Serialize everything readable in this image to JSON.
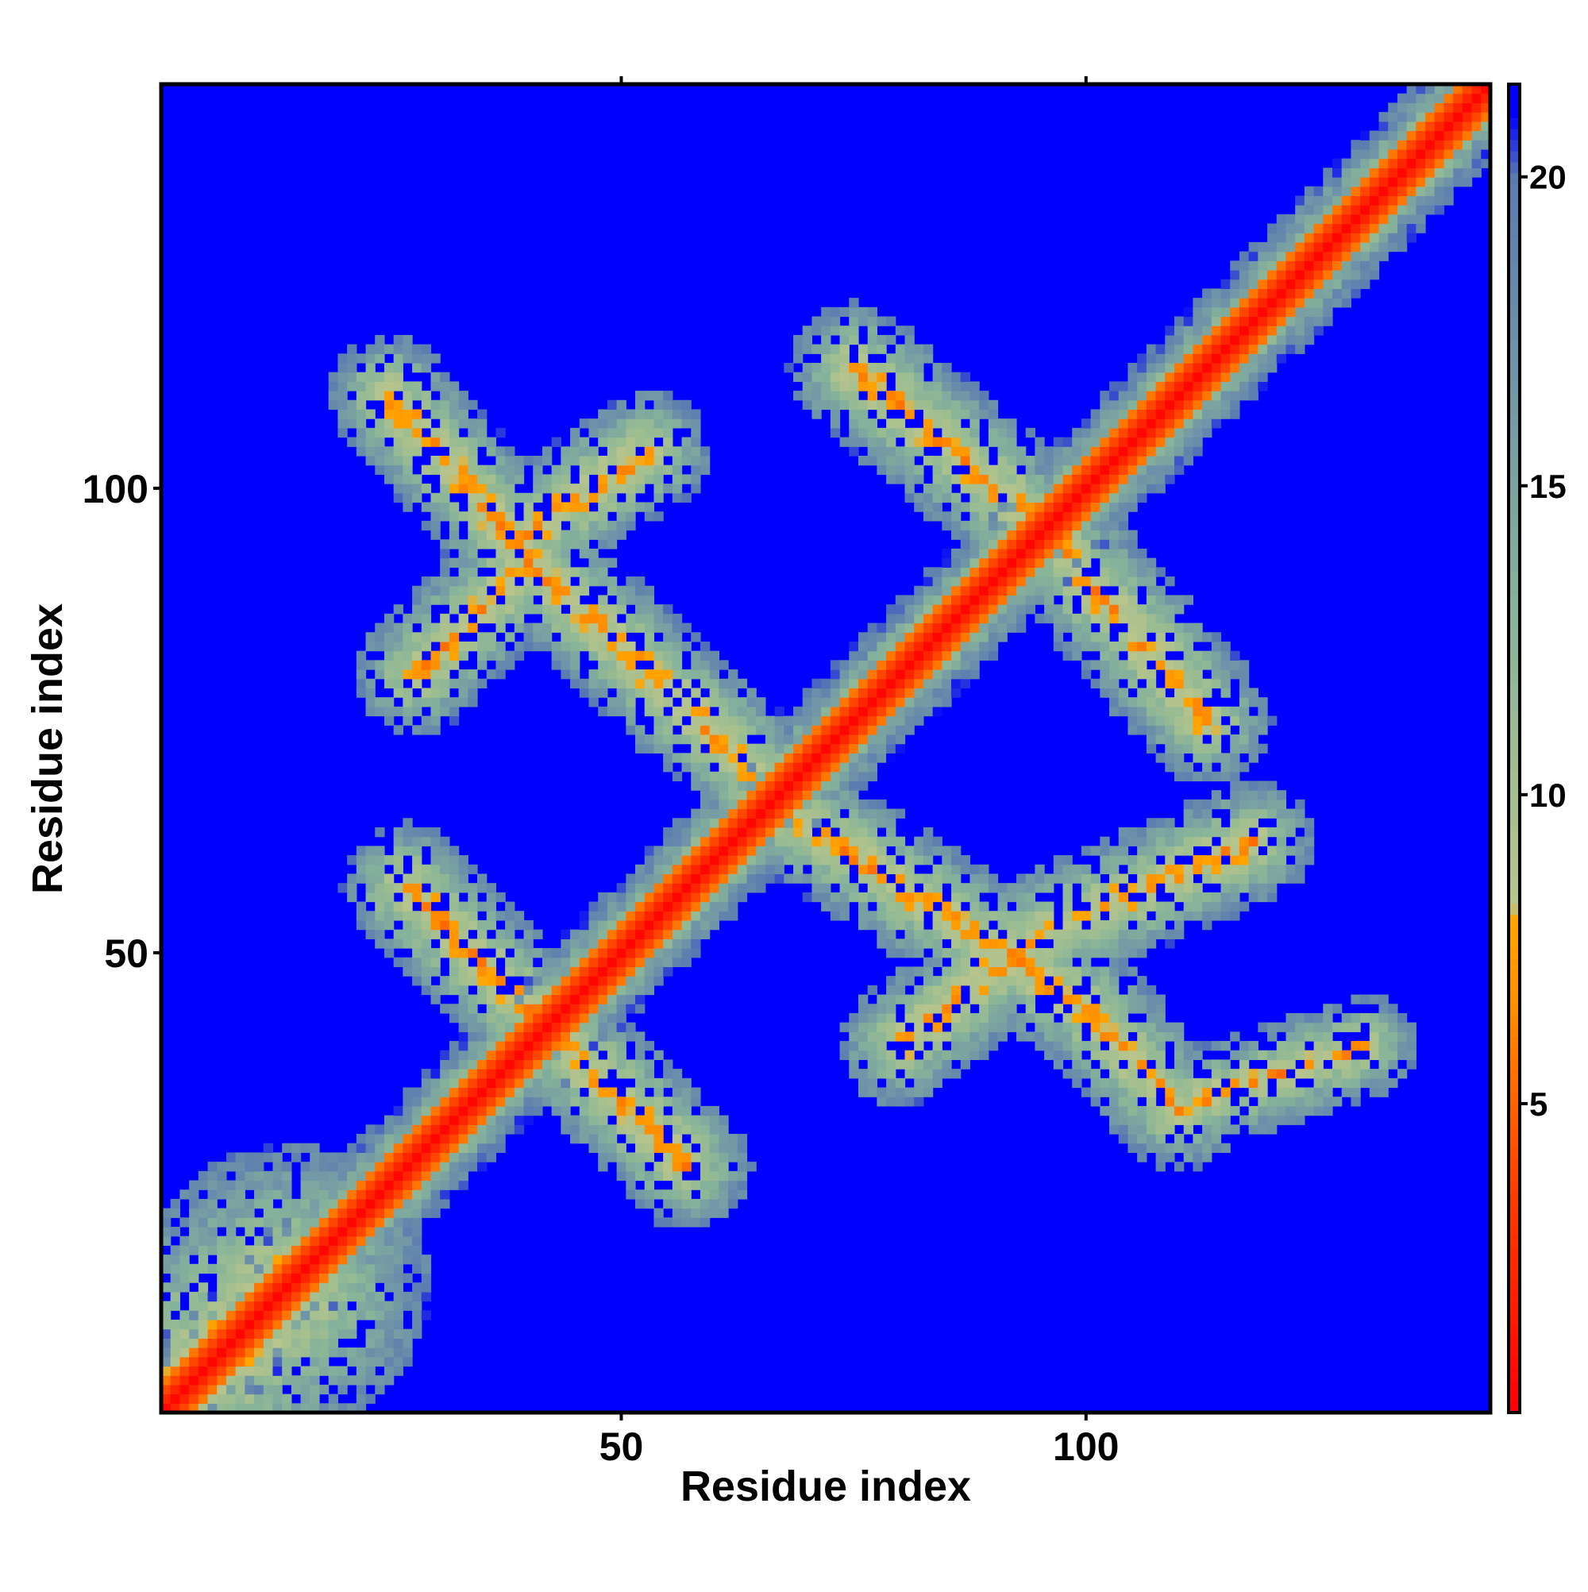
{
  "chart_data": {
    "type": "heatmap",
    "title": "",
    "xlabel": "Residue index",
    "ylabel": "Residue index",
    "xlim": [
      1,
      143
    ],
    "ylim": [
      1,
      143
    ],
    "x_ticks": [
      50,
      100
    ],
    "y_ticks": [
      50,
      100
    ],
    "grid": false,
    "colorbar": {
      "ticks": [
        5,
        10,
        15,
        20
      ],
      "range": [
        0,
        21.5
      ],
      "scale": [
        {
          "value": 0,
          "color": "#ff0000"
        },
        {
          "value": 3.5,
          "color": "#ff3a00"
        },
        {
          "value": 6.5,
          "color": "#ff8c00"
        },
        {
          "value": 8.0,
          "color": "#ffa500"
        },
        {
          "value": 8.2,
          "color": "#b8c48c"
        },
        {
          "value": 10.5,
          "color": "#9fbe90"
        },
        {
          "value": 13,
          "color": "#86b39a"
        },
        {
          "value": 17,
          "color": "#6f93a8"
        },
        {
          "value": 20,
          "color": "#5a7bb0"
        },
        {
          "value": 21,
          "color": "#0000ff"
        },
        {
          "value": 21.5,
          "color": "#0000ff"
        }
      ]
    },
    "background_value": 21,
    "background_color": "#0000ff",
    "features": [
      {
        "kind": "diagonal",
        "range": [
          1,
          143
        ],
        "width": 2.2
      },
      {
        "kind": "arm",
        "from": [
          1,
          1
        ],
        "to": [
          14,
          14
        ],
        "width": 7
      },
      {
        "kind": "arm",
        "from": [
          27,
          57
        ],
        "to": [
          40,
          44
        ],
        "width": 3.2
      },
      {
        "kind": "arm",
        "from": [
          44,
          40
        ],
        "to": [
          57,
          27
        ],
        "width": 3.2
      },
      {
        "kind": "arm",
        "from": [
          25,
          110
        ],
        "to": [
          37,
          96
        ],
        "width": 3.0
      },
      {
        "kind": "arm",
        "from": [
          53,
          104
        ],
        "to": [
          38,
          94
        ],
        "width": 3.0
      },
      {
        "kind": "arm",
        "from": [
          38,
          94
        ],
        "to": [
          66,
          68
        ],
        "width": 3.0
      },
      {
        "kind": "arm",
        "from": [
          28,
          80
        ],
        "to": [
          38,
          90
        ],
        "width": 3.0
      },
      {
        "kind": "arm",
        "from": [
          75,
          113
        ],
        "to": [
          95,
          96
        ],
        "width": 3.2
      },
      {
        "kind": "arm",
        "from": [
          95,
          96
        ],
        "to": [
          113,
          75
        ],
        "width": 3.2
      },
      {
        "kind": "arm",
        "from": [
          68,
          65
        ],
        "to": [
          100,
          44
        ],
        "width": 3.0
      },
      {
        "kind": "arm",
        "from": [
          80,
          40
        ],
        "to": [
          95,
          52
        ],
        "width": 3.0
      },
      {
        "kind": "arm",
        "from": [
          95,
          52
        ],
        "to": [
          118,
          62
        ],
        "width": 3.0
      },
      {
        "kind": "arm",
        "from": [
          100,
          44
        ],
        "to": [
          110,
          33
        ],
        "width": 3.0
      },
      {
        "kind": "arm",
        "from": [
          112,
          34
        ],
        "to": [
          130,
          40
        ],
        "width": 2.5
      }
    ]
  }
}
